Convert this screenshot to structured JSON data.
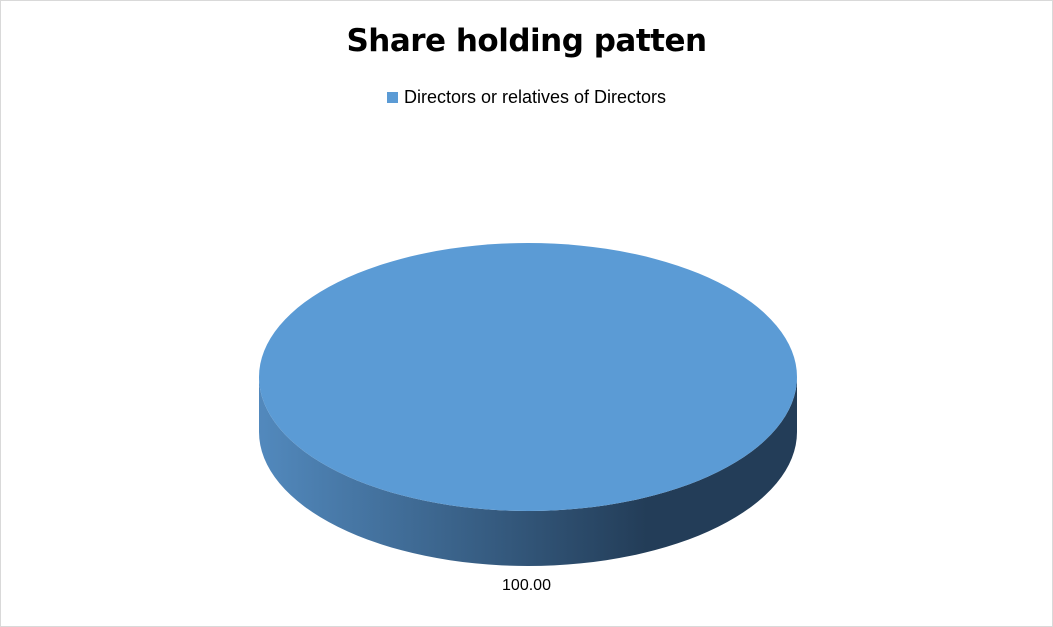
{
  "chart_data": {
    "type": "pie",
    "title": "Share holding patten",
    "categories": [
      "Directors or relatives of Directors"
    ],
    "values": [
      100.0
    ],
    "data_labels": [
      "100.00"
    ],
    "legend_placement": "top",
    "style": "3d",
    "colors": {
      "slice": "#5b9bd5",
      "side_light": "#5289bd",
      "side_dark": "#233d58"
    }
  }
}
